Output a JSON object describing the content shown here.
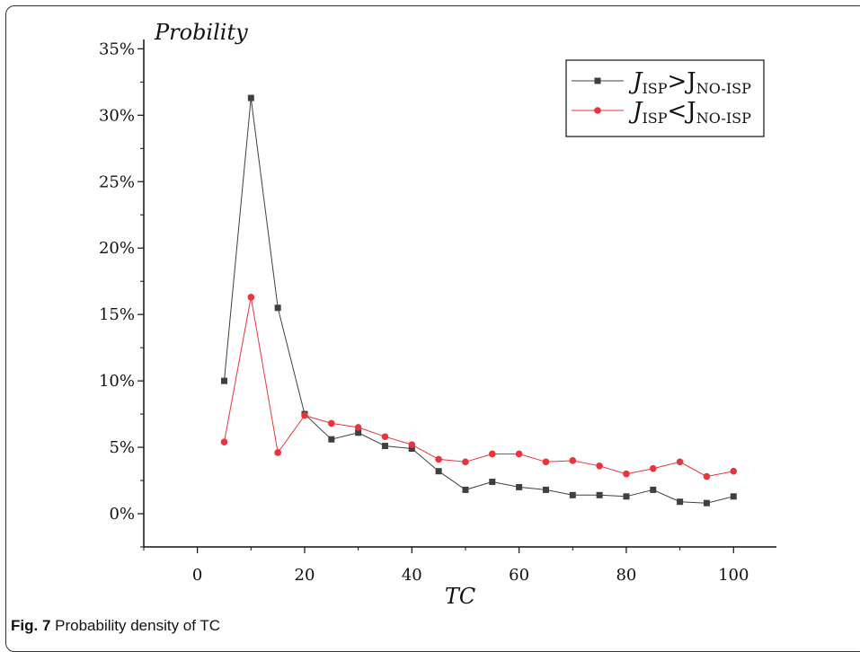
{
  "caption": {
    "label": "Fig. 7",
    "text": " Probability density of TC"
  },
  "chart_data": {
    "type": "line",
    "title": "",
    "xlabel": "TC",
    "ylabel": "Probility",
    "xlim": [
      -10,
      108
    ],
    "ylim": [
      -2.5,
      35.7
    ],
    "x_ticks": [
      0,
      20,
      40,
      60,
      80,
      100
    ],
    "y_ticks": [
      0,
      5,
      10,
      15,
      20,
      25,
      30,
      35
    ],
    "y_tick_suffix": "%",
    "legend_position": "top-right",
    "x": [
      5,
      10,
      15,
      20,
      25,
      30,
      35,
      40,
      45,
      50,
      55,
      60,
      65,
      70,
      75,
      80,
      85,
      90,
      95,
      100
    ],
    "series": [
      {
        "name_main": "J",
        "name_sub1": "ISP",
        "name_op": ">",
        "name_main2": "J",
        "name_sub2": "NO-ISP",
        "color": "#404040",
        "marker": "square",
        "values": [
          10.0,
          31.3,
          15.5,
          7.5,
          5.6,
          6.1,
          5.1,
          4.9,
          3.2,
          1.8,
          2.4,
          2.0,
          1.8,
          1.4,
          1.4,
          1.3,
          1.8,
          0.9,
          0.8,
          1.3
        ]
      },
      {
        "name_main": "J",
        "name_sub1": "ISP",
        "name_op": "<",
        "name_main2": "J",
        "name_sub2": "NO-ISP",
        "color": "#e8343c",
        "marker": "circle",
        "values": [
          5.4,
          16.3,
          4.6,
          7.4,
          6.8,
          6.5,
          5.8,
          5.2,
          4.1,
          3.9,
          4.5,
          4.5,
          3.9,
          4.0,
          3.6,
          3.0,
          3.4,
          3.9,
          2.8,
          3.2
        ]
      }
    ]
  }
}
